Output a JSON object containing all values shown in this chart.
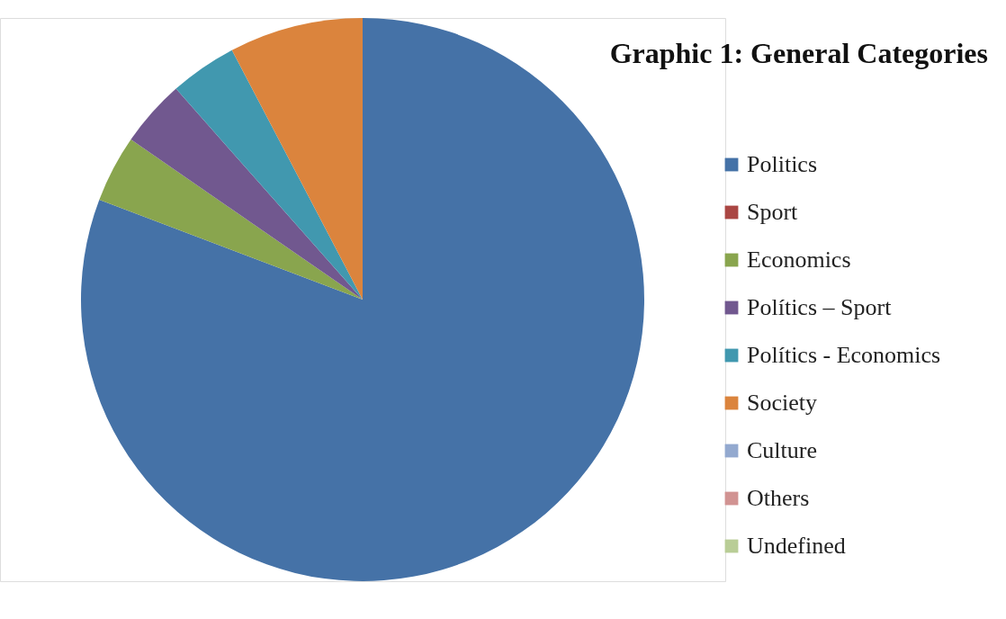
{
  "chart_data": {
    "type": "pie",
    "title": "Graphic 1: General Categories",
    "categories": [
      "Politics",
      "Sport",
      "Economics",
      "Polítics – Sport",
      "Polítics -  Economics",
      "Society",
      "Culture",
      "Others",
      "Undefined"
    ],
    "values": [
      80.77,
      0,
      3.85,
      3.85,
      3.85,
      7.68,
      0,
      0,
      0
    ],
    "colors": [
      "#4572a7",
      "#aa4643",
      "#89a54e",
      "#71588f",
      "#4198af",
      "#db843d",
      "#93a9cf",
      "#d19392",
      "#b9cd96"
    ],
    "legend": "right"
  }
}
